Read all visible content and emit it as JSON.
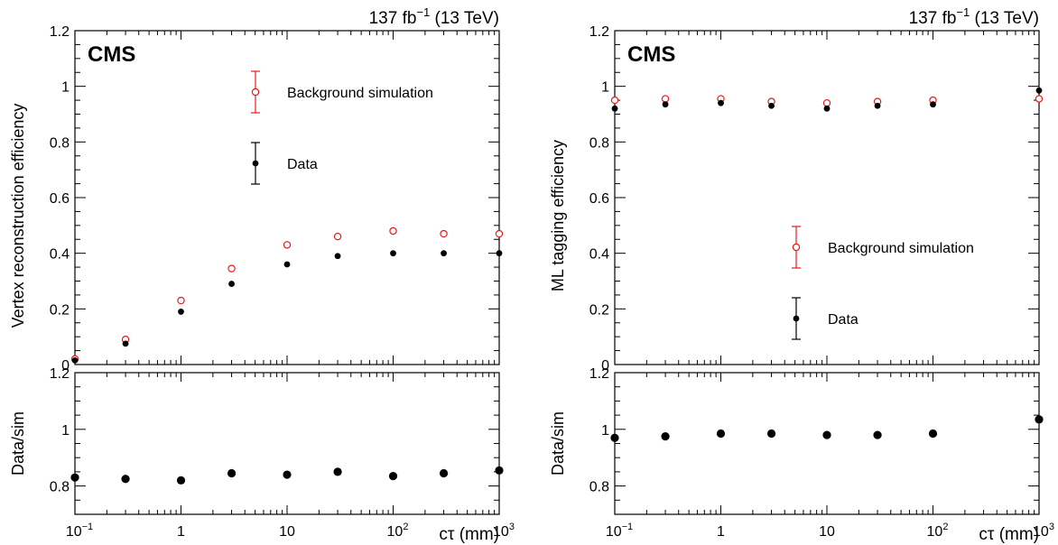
{
  "chart_data": [
    {
      "type": "scatter",
      "lumi_label": "137 fb",
      "lumi_sup": "−1",
      "lumi_energy": "(13 TeV)",
      "experiment_label": "CMS",
      "ylabel": "Vertex reconstruction efficiency",
      "ratio_ylabel": "Data/sim",
      "xlabel": "cτ (mm)",
      "x_scale": "log",
      "xlim": [
        0.1,
        1000
      ],
      "ylim": [
        0,
        1.2
      ],
      "ratio_ylim": [
        0.7,
        1.2
      ],
      "x_ticks": [
        {
          "v": 0.1,
          "base": "10",
          "exp": "−1"
        },
        {
          "v": 1,
          "base": "1",
          "exp": ""
        },
        {
          "v": 10,
          "base": "10",
          "exp": ""
        },
        {
          "v": 100,
          "base": "10",
          "exp": "2"
        },
        {
          "v": 1000,
          "base": "10",
          "exp": "3"
        }
      ],
      "y_ticks": [
        {
          "v": 0,
          "label": "0"
        },
        {
          "v": 0.2,
          "label": "0.2"
        },
        {
          "v": 0.4,
          "label": "0.4"
        },
        {
          "v": 0.6,
          "label": "0.6"
        },
        {
          "v": 0.8,
          "label": "0.8"
        },
        {
          "v": 1.0,
          "label": "1"
        },
        {
          "v": 1.2,
          "label": "1.2"
        }
      ],
      "ratio_y_ticks": [
        {
          "v": 0.8,
          "label": "0.8"
        },
        {
          "v": 1.0,
          "label": "1"
        },
        {
          "v": 1.2,
          "label": "1.2"
        }
      ],
      "x": [
        0.1,
        0.3,
        1,
        3,
        10,
        30,
        100,
        300,
        1000
      ],
      "series": [
        {
          "name": "Background simulation",
          "color": "#e8191c",
          "marker": "open-circle",
          "values": [
            0.02,
            0.09,
            0.23,
            0.345,
            0.43,
            0.46,
            0.48,
            0.47,
            0.47
          ]
        },
        {
          "name": "Data",
          "color": "#000000",
          "marker": "filled-circle",
          "values": [
            0.015,
            0.075,
            0.19,
            0.29,
            0.36,
            0.39,
            0.4,
            0.4,
            0.4
          ]
        }
      ],
      "ratio_values": [
        0.83,
        0.825,
        0.82,
        0.845,
        0.84,
        0.85,
        0.835,
        0.845,
        0.855
      ],
      "legend_position": "top-center"
    },
    {
      "type": "scatter",
      "lumi_label": "137 fb",
      "lumi_sup": "−1",
      "lumi_energy": "(13 TeV)",
      "experiment_label": "CMS",
      "ylabel": "ML tagging efficiency",
      "ratio_ylabel": "Data/sim",
      "xlabel": "cτ (mm)",
      "x_scale": "log",
      "xlim": [
        0.1,
        1000
      ],
      "ylim": [
        0,
        1.2
      ],
      "ratio_ylim": [
        0.7,
        1.2
      ],
      "x_ticks": [
        {
          "v": 0.1,
          "base": "10",
          "exp": "−1"
        },
        {
          "v": 1,
          "base": "1",
          "exp": ""
        },
        {
          "v": 10,
          "base": "10",
          "exp": ""
        },
        {
          "v": 100,
          "base": "10",
          "exp": "2"
        },
        {
          "v": 1000,
          "base": "10",
          "exp": "3"
        }
      ],
      "y_ticks": [
        {
          "v": 0,
          "label": "0"
        },
        {
          "v": 0.2,
          "label": "0.2"
        },
        {
          "v": 0.4,
          "label": "0.4"
        },
        {
          "v": 0.6,
          "label": "0.6"
        },
        {
          "v": 0.8,
          "label": "0.8"
        },
        {
          "v": 1.0,
          "label": "1"
        },
        {
          "v": 1.2,
          "label": "1.2"
        }
      ],
      "ratio_y_ticks": [
        {
          "v": 0.8,
          "label": "0.8"
        },
        {
          "v": 1.0,
          "label": "1"
        },
        {
          "v": 1.2,
          "label": "1.2"
        }
      ],
      "x": [
        0.1,
        0.3,
        1,
        3,
        10,
        30,
        100,
        1000
      ],
      "series": [
        {
          "name": "Background simulation",
          "color": "#e8191c",
          "marker": "open-circle",
          "values": [
            0.95,
            0.955,
            0.955,
            0.945,
            0.94,
            0.945,
            0.95,
            0.955
          ]
        },
        {
          "name": "Data",
          "color": "#000000",
          "marker": "filled-circle",
          "values": [
            0.92,
            0.935,
            0.94,
            0.93,
            0.92,
            0.93,
            0.935,
            0.985
          ]
        }
      ],
      "ratio_values": [
        0.97,
        0.975,
        0.985,
        0.985,
        0.98,
        0.98,
        0.985,
        1.035
      ],
      "legend_position": "center-right"
    }
  ]
}
